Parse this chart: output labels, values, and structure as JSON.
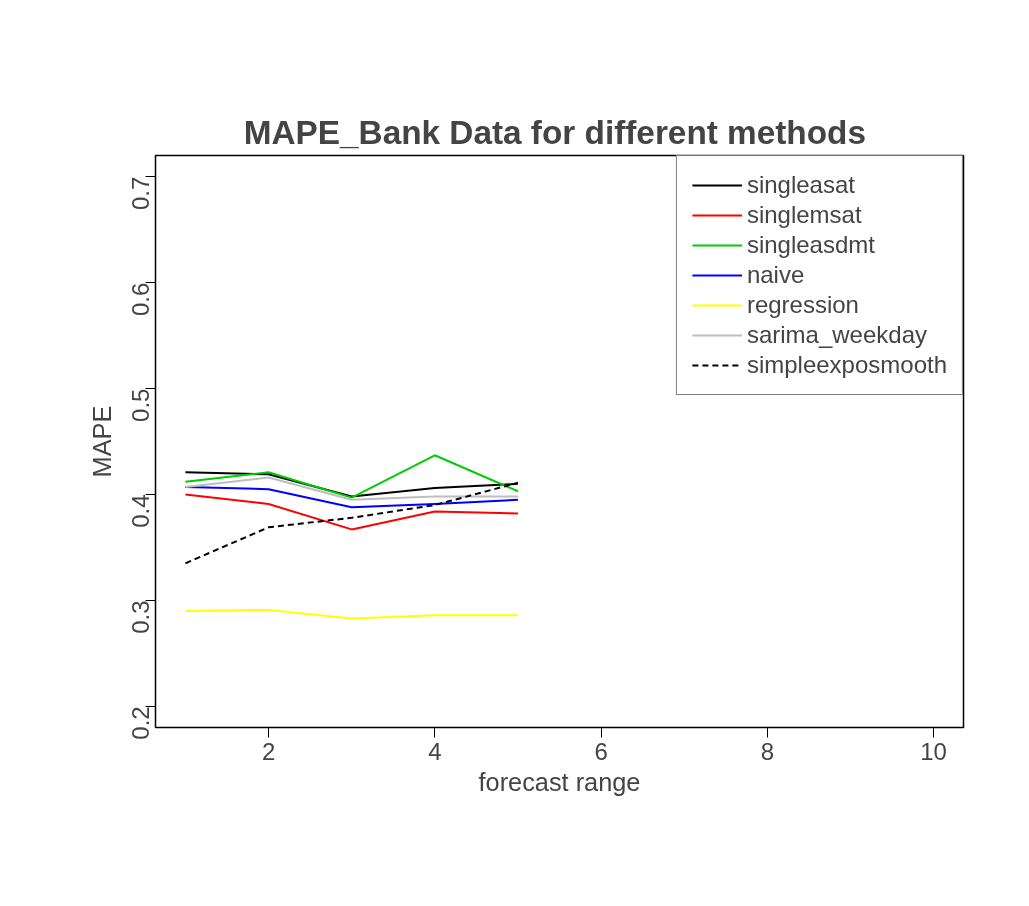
{
  "chart_data": {
    "type": "line",
    "title": "MAPE_Bank Data  for different methods",
    "xlabel": "forecast range",
    "ylabel": "MAPE",
    "xlim": [
      0.64,
      10.36
    ],
    "ylim": [
      0.18,
      0.72
    ],
    "xticks": [
      2,
      4,
      6,
      8,
      10
    ],
    "yticks": [
      0.2,
      0.3,
      0.4,
      0.5,
      0.6,
      0.7
    ],
    "x": [
      1,
      2,
      3,
      4,
      5
    ],
    "grid": false,
    "legend": "top right",
    "series": [
      {
        "name": "singleasat",
        "color": "#000000",
        "values": [
          0.421,
          0.419,
          0.398,
          0.406,
          0.41
        ]
      },
      {
        "name": "singlemsat",
        "color": "#ff0000",
        "values": [
          0.4,
          0.391,
          0.367,
          0.384,
          0.382
        ]
      },
      {
        "name": "singleasdmt",
        "color": "#00cd00",
        "values": [
          0.412,
          0.421,
          0.397,
          0.437,
          0.403
        ]
      },
      {
        "name": "naive",
        "color": "#0000ff",
        "values": [
          0.407,
          0.405,
          0.388,
          0.391,
          0.395
        ]
      },
      {
        "name": "regression",
        "color": "#ffff00",
        "values": [
          0.29,
          0.291,
          0.283,
          0.286,
          0.286
        ]
      },
      {
        "name": "sarima_weekday",
        "color": "#bebebe",
        "values": [
          0.407,
          0.416,
          0.395,
          0.398,
          0.398
        ]
      },
      {
        "name": "simpleexposmooth",
        "color": "#000000",
        "line_style": "dashed",
        "values": [
          0.335,
          0.369,
          0.378,
          0.39,
          0.411
        ]
      }
    ]
  }
}
